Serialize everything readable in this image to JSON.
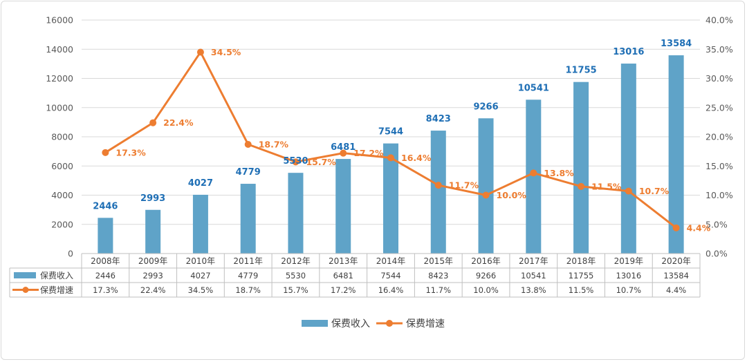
{
  "chart_data": {
    "type": "bar+line",
    "categories": [
      "2008年",
      "2009年",
      "2010年",
      "2011年",
      "2012年",
      "2013年",
      "2014年",
      "2015年",
      "2016年",
      "2017年",
      "2018年",
      "2019年",
      "2020年"
    ],
    "series": [
      {
        "name": "保费收入",
        "type": "bar",
        "axis": "left",
        "color": "#5FA3C8",
        "values": [
          2446,
          2993,
          4027,
          4779,
          5530,
          6481,
          7544,
          8423,
          9266,
          10541,
          11755,
          13016,
          13584
        ],
        "labels": [
          "2446",
          "2993",
          "4027",
          "4779",
          "5530",
          "6481",
          "7544",
          "8423",
          "9266",
          "10541",
          "11755",
          "13016",
          "13584"
        ]
      },
      {
        "name": "保费增速",
        "type": "line",
        "axis": "right",
        "color": "#ED7D31",
        "values": [
          17.3,
          22.4,
          34.5,
          18.7,
          15.7,
          17.2,
          16.4,
          11.7,
          10.0,
          13.8,
          11.5,
          10.7,
          4.4
        ],
        "labels": [
          "17.3%",
          "22.4%",
          "34.5%",
          "18.7%",
          "15.7%",
          "17.2%",
          "16.4%",
          "11.7%",
          "10.0%",
          "13.8%",
          "11.5%",
          "10.7%",
          "4.4%"
        ]
      }
    ],
    "left_axis": {
      "ylim": [
        0,
        16000
      ],
      "ticks": [
        "0",
        "2000",
        "4000",
        "6000",
        "8000",
        "10000",
        "12000",
        "14000",
        "16000"
      ]
    },
    "right_axis": {
      "ylim": [
        0,
        40
      ],
      "ticks": [
        "0.0%",
        "5.0%",
        "10.0%",
        "15.0%",
        "20.0%",
        "25.0%",
        "30.0%",
        "35.0%",
        "40.0%"
      ]
    },
    "grid": true,
    "data_table": true,
    "legend": {
      "position": "bottom",
      "items": [
        "保费收入",
        "保费增速"
      ]
    },
    "title": "",
    "xlabel": "",
    "ylabel": ""
  }
}
